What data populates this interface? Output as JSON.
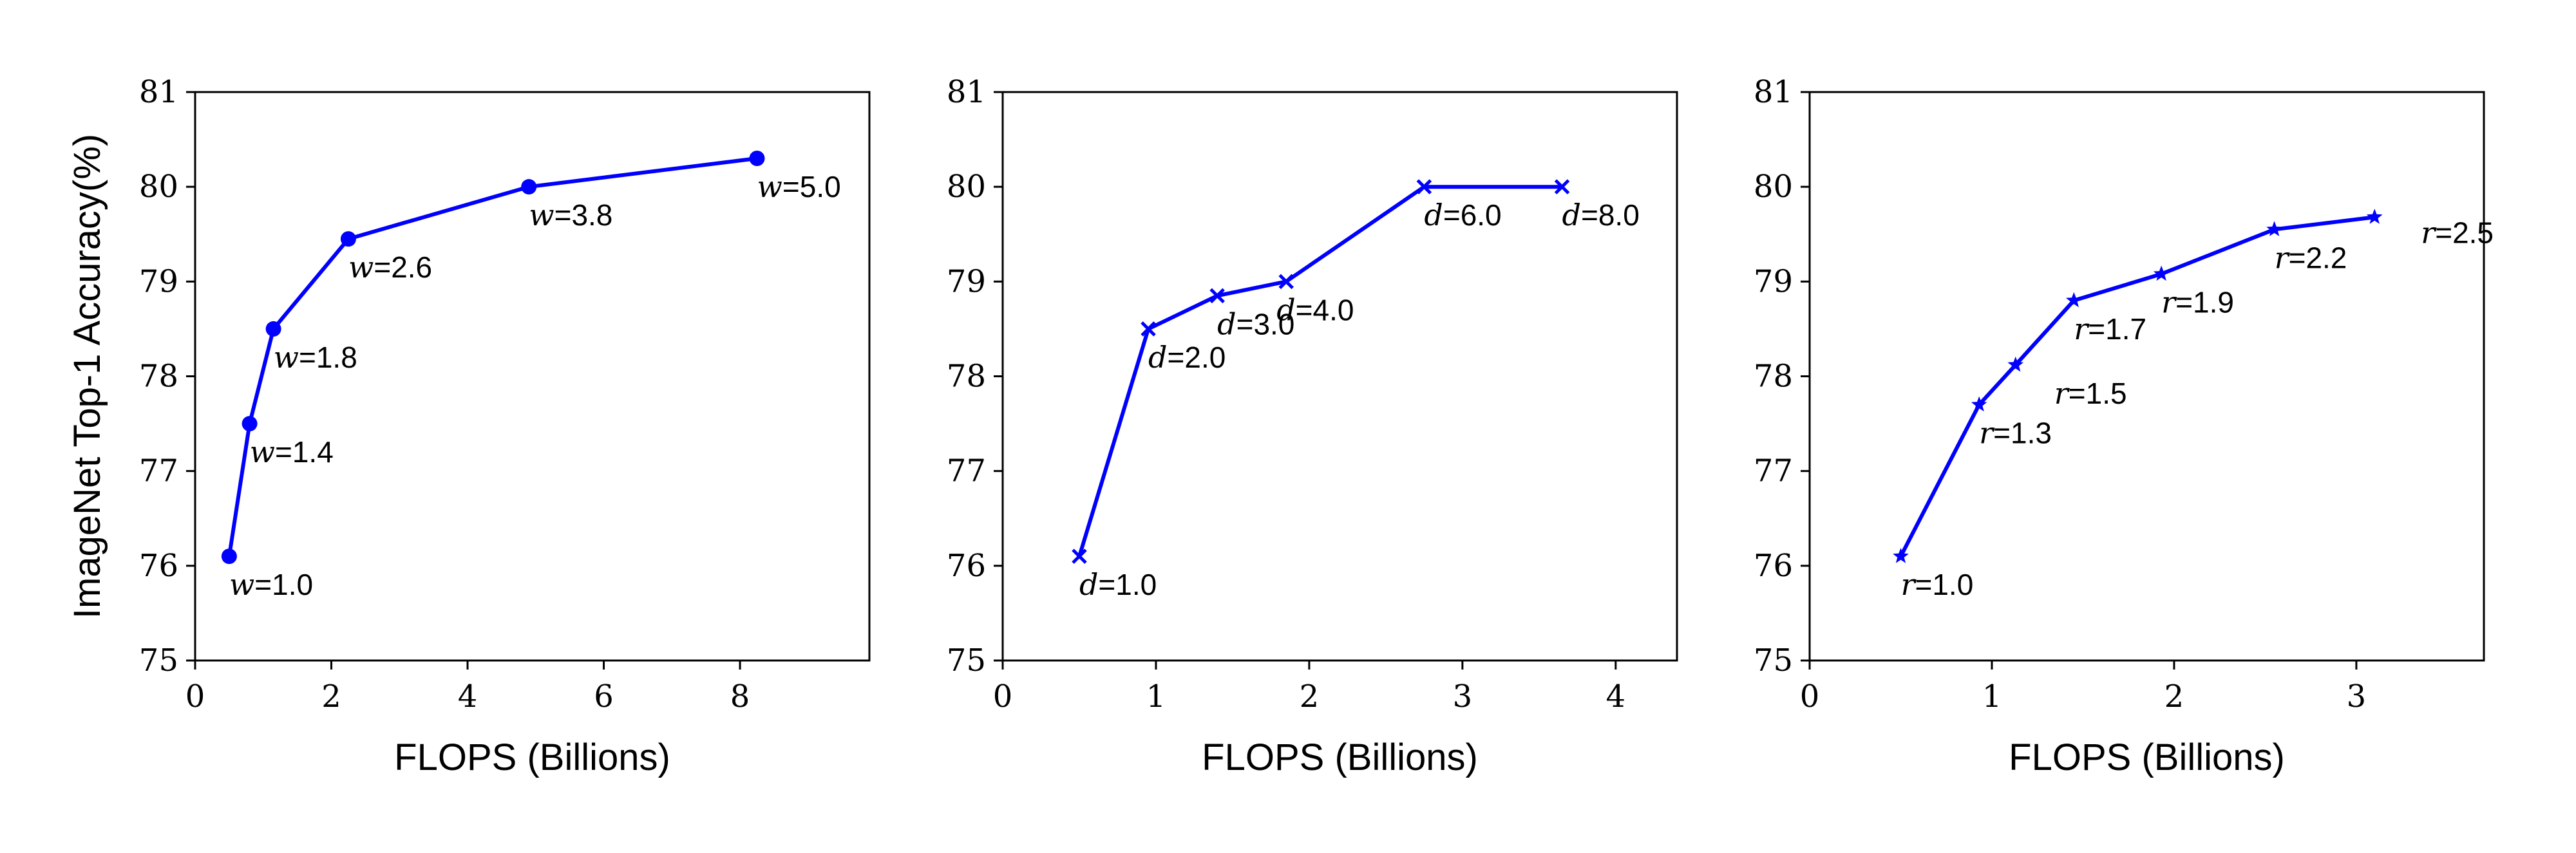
{
  "chart_data": [
    {
      "type": "line",
      "xlabel": "FLOPS (Billions)",
      "ylabel": "ImageNet Top-1 Accuracy(%)",
      "xlim": [
        0,
        9.9
      ],
      "ylim": [
        75,
        81
      ],
      "xticks": [
        "0",
        "2",
        "4",
        "6",
        "8"
      ],
      "yticks": [
        "75",
        "76",
        "77",
        "78",
        "79",
        "80",
        "81"
      ],
      "marker": "circle",
      "color": "#0000ff",
      "series": [
        {
          "x": [
            0.5,
            0.8,
            1.15,
            2.25,
            4.9,
            8.25
          ],
          "y": [
            76.1,
            77.5,
            78.5,
            79.45,
            80.0,
            80.3
          ],
          "labels": [
            {
              "var": "w",
              "text": "=1.0"
            },
            {
              "var": "w",
              "text": "=1.4"
            },
            {
              "var": "w",
              "text": "=1.8"
            },
            {
              "var": "w",
              "text": "=2.6"
            },
            {
              "var": "w",
              "text": "=3.8"
            },
            {
              "var": "w",
              "text": "=5.0"
            }
          ]
        }
      ]
    },
    {
      "type": "line",
      "xlabel": "FLOPS (Billions)",
      "ylabel": "",
      "xlim": [
        0,
        4.4
      ],
      "ylim": [
        75,
        81
      ],
      "xticks": [
        "0",
        "1",
        "2",
        "3",
        "4"
      ],
      "yticks": [
        "75",
        "76",
        "77",
        "78",
        "79",
        "80",
        "81"
      ],
      "marker": "x",
      "color": "#0000ff",
      "series": [
        {
          "x": [
            0.5,
            0.95,
            1.4,
            1.85,
            2.75,
            3.65
          ],
          "y": [
            76.1,
            78.5,
            78.85,
            79.0,
            80.0,
            80.0
          ],
          "labels": [
            {
              "var": "d",
              "text": "=1.0"
            },
            {
              "var": "d",
              "text": "=2.0"
            },
            {
              "var": "d",
              "text": "=3.0"
            },
            {
              "var": "d",
              "text": "=4.0"
            },
            {
              "var": "d",
              "text": "=6.0"
            },
            {
              "var": "d",
              "text": "=8.0"
            }
          ]
        }
      ]
    },
    {
      "type": "line",
      "xlabel": "FLOPS (Billions)",
      "ylabel": "",
      "xlim": [
        0,
        3.7
      ],
      "ylim": [
        75,
        81
      ],
      "xticks": [
        "0",
        "1",
        "2",
        "3"
      ],
      "yticks": [
        "75",
        "76",
        "77",
        "78",
        "79",
        "80",
        "81"
      ],
      "marker": "star",
      "color": "#0000ff",
      "series": [
        {
          "x": [
            0.5,
            0.93,
            1.13,
            1.45,
            1.93,
            2.55,
            3.1
          ],
          "y": [
            76.1,
            77.7,
            78.12,
            78.8,
            79.08,
            79.55,
            79.68
          ],
          "labels": [
            {
              "var": "r",
              "text": "=1.0"
            },
            {
              "var": "r",
              "text": "=1.3"
            },
            {
              "var": "r",
              "text": "=1.5"
            },
            {
              "var": "r",
              "text": "=1.7"
            },
            {
              "var": "r",
              "text": "=1.9"
            },
            {
              "var": "r",
              "text": "=2.2"
            },
            {
              "var": "r",
              "text": "=2.5"
            }
          ]
        }
      ]
    }
  ]
}
